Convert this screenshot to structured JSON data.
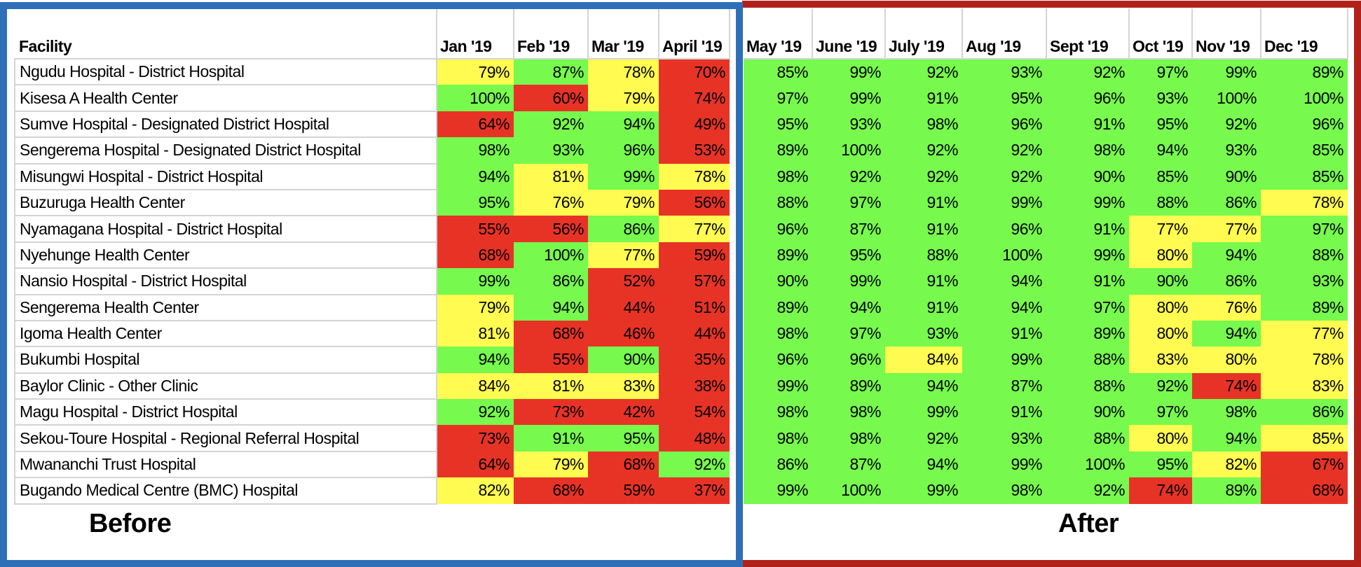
{
  "table": {
    "facility_header": "Facility",
    "before_months": [
      "Jan '19",
      "Feb '19",
      "Mar '19",
      "April '19"
    ],
    "after_months": [
      "May '19",
      "June '19",
      "July '19",
      "Aug '19",
      "Sept '19",
      "Oct '19",
      "Nov '19",
      "Dec '19"
    ],
    "colors": {
      "green": "#77f94d",
      "yellow": "#fffb50",
      "red": "#e73326",
      "before_frame": "#2e6fb8",
      "after_frame": "#b1211a"
    },
    "rows": [
      {
        "facility": "Ngudu Hospital - District Hospital",
        "before": [
          [
            "79%",
            "y"
          ],
          [
            "87%",
            "g"
          ],
          [
            "78%",
            "y"
          ],
          [
            "70%",
            "r"
          ]
        ],
        "after": [
          [
            "85%",
            "g"
          ],
          [
            "99%",
            "g"
          ],
          [
            "92%",
            "g"
          ],
          [
            "93%",
            "g"
          ],
          [
            "92%",
            "g"
          ],
          [
            "97%",
            "g"
          ],
          [
            "99%",
            "g"
          ],
          [
            "89%",
            "g"
          ]
        ]
      },
      {
        "facility": "Kisesa A Health Center",
        "before": [
          [
            "100%",
            "g"
          ],
          [
            "60%",
            "r"
          ],
          [
            "79%",
            "y"
          ],
          [
            "74%",
            "r"
          ]
        ],
        "after": [
          [
            "97%",
            "g"
          ],
          [
            "99%",
            "g"
          ],
          [
            "91%",
            "g"
          ],
          [
            "95%",
            "g"
          ],
          [
            "96%",
            "g"
          ],
          [
            "93%",
            "g"
          ],
          [
            "100%",
            "g"
          ],
          [
            "100%",
            "g"
          ]
        ]
      },
      {
        "facility": "Sumve Hospital - Designated District Hospital",
        "before": [
          [
            "64%",
            "r"
          ],
          [
            "92%",
            "g"
          ],
          [
            "94%",
            "g"
          ],
          [
            "49%",
            "r"
          ]
        ],
        "after": [
          [
            "95%",
            "g"
          ],
          [
            "93%",
            "g"
          ],
          [
            "98%",
            "g"
          ],
          [
            "96%",
            "g"
          ],
          [
            "91%",
            "g"
          ],
          [
            "95%",
            "g"
          ],
          [
            "92%",
            "g"
          ],
          [
            "96%",
            "g"
          ]
        ]
      },
      {
        "facility": "Sengerema Hospital - Designated District Hospital",
        "before": [
          [
            "98%",
            "g"
          ],
          [
            "93%",
            "g"
          ],
          [
            "96%",
            "g"
          ],
          [
            "53%",
            "r"
          ]
        ],
        "after": [
          [
            "89%",
            "g"
          ],
          [
            "100%",
            "g"
          ],
          [
            "92%",
            "g"
          ],
          [
            "92%",
            "g"
          ],
          [
            "98%",
            "g"
          ],
          [
            "94%",
            "g"
          ],
          [
            "93%",
            "g"
          ],
          [
            "85%",
            "g"
          ]
        ]
      },
      {
        "facility": "Misungwi Hospital - District Hospital",
        "before": [
          [
            "94%",
            "g"
          ],
          [
            "81%",
            "y"
          ],
          [
            "99%",
            "g"
          ],
          [
            "78%",
            "y"
          ]
        ],
        "after": [
          [
            "98%",
            "g"
          ],
          [
            "92%",
            "g"
          ],
          [
            "92%",
            "g"
          ],
          [
            "92%",
            "g"
          ],
          [
            "90%",
            "g"
          ],
          [
            "85%",
            "g"
          ],
          [
            "90%",
            "g"
          ],
          [
            "85%",
            "g"
          ]
        ]
      },
      {
        "facility": "Buzuruga Health Center",
        "before": [
          [
            "95%",
            "g"
          ],
          [
            "76%",
            "y"
          ],
          [
            "79%",
            "y"
          ],
          [
            "56%",
            "r"
          ]
        ],
        "after": [
          [
            "88%",
            "g"
          ],
          [
            "97%",
            "g"
          ],
          [
            "91%",
            "g"
          ],
          [
            "99%",
            "g"
          ],
          [
            "99%",
            "g"
          ],
          [
            "88%",
            "g"
          ],
          [
            "86%",
            "g"
          ],
          [
            "78%",
            "y"
          ]
        ]
      },
      {
        "facility": "Nyamagana Hospital - District Hospital",
        "before": [
          [
            "55%",
            "r"
          ],
          [
            "56%",
            "r"
          ],
          [
            "86%",
            "g"
          ],
          [
            "77%",
            "y"
          ]
        ],
        "after": [
          [
            "96%",
            "g"
          ],
          [
            "87%",
            "g"
          ],
          [
            "91%",
            "g"
          ],
          [
            "96%",
            "g"
          ],
          [
            "91%",
            "g"
          ],
          [
            "77%",
            "y"
          ],
          [
            "77%",
            "y"
          ],
          [
            "97%",
            "g"
          ]
        ]
      },
      {
        "facility": "Nyehunge Health Center",
        "before": [
          [
            "68%",
            "r"
          ],
          [
            "100%",
            "g"
          ],
          [
            "77%",
            "y"
          ],
          [
            "59%",
            "r"
          ]
        ],
        "after": [
          [
            "89%",
            "g"
          ],
          [
            "95%",
            "g"
          ],
          [
            "88%",
            "g"
          ],
          [
            "100%",
            "g"
          ],
          [
            "99%",
            "g"
          ],
          [
            "80%",
            "y"
          ],
          [
            "94%",
            "g"
          ],
          [
            "88%",
            "g"
          ]
        ]
      },
      {
        "facility": "Nansio Hospital - District Hospital",
        "before": [
          [
            "99%",
            "g"
          ],
          [
            "86%",
            "g"
          ],
          [
            "52%",
            "r"
          ],
          [
            "57%",
            "r"
          ]
        ],
        "after": [
          [
            "90%",
            "g"
          ],
          [
            "99%",
            "g"
          ],
          [
            "91%",
            "g"
          ],
          [
            "94%",
            "g"
          ],
          [
            "91%",
            "g"
          ],
          [
            "90%",
            "g"
          ],
          [
            "86%",
            "g"
          ],
          [
            "93%",
            "g"
          ]
        ]
      },
      {
        "facility": "Sengerema Health Center",
        "before": [
          [
            "79%",
            "y"
          ],
          [
            "94%",
            "g"
          ],
          [
            "44%",
            "r"
          ],
          [
            "51%",
            "r"
          ]
        ],
        "after": [
          [
            "89%",
            "g"
          ],
          [
            "94%",
            "g"
          ],
          [
            "91%",
            "g"
          ],
          [
            "94%",
            "g"
          ],
          [
            "97%",
            "g"
          ],
          [
            "80%",
            "y"
          ],
          [
            "76%",
            "y"
          ],
          [
            "89%",
            "g"
          ]
        ]
      },
      {
        "facility": "Igoma Health Center",
        "before": [
          [
            "81%",
            "y"
          ],
          [
            "68%",
            "r"
          ],
          [
            "46%",
            "r"
          ],
          [
            "44%",
            "r"
          ]
        ],
        "after": [
          [
            "98%",
            "g"
          ],
          [
            "97%",
            "g"
          ],
          [
            "93%",
            "g"
          ],
          [
            "91%",
            "g"
          ],
          [
            "89%",
            "g"
          ],
          [
            "80%",
            "y"
          ],
          [
            "94%",
            "g"
          ],
          [
            "77%",
            "y"
          ]
        ]
      },
      {
        "facility": "Bukumbi Hospital",
        "before": [
          [
            "94%",
            "g"
          ],
          [
            "55%",
            "r"
          ],
          [
            "90%",
            "g"
          ],
          [
            "35%",
            "r"
          ]
        ],
        "after": [
          [
            "96%",
            "g"
          ],
          [
            "96%",
            "g"
          ],
          [
            "84%",
            "y"
          ],
          [
            "99%",
            "g"
          ],
          [
            "88%",
            "g"
          ],
          [
            "83%",
            "y"
          ],
          [
            "80%",
            "y"
          ],
          [
            "78%",
            "y"
          ]
        ]
      },
      {
        "facility": "Baylor Clinic - Other Clinic",
        "before": [
          [
            "84%",
            "y"
          ],
          [
            "81%",
            "y"
          ],
          [
            "83%",
            "y"
          ],
          [
            "38%",
            "r"
          ]
        ],
        "after": [
          [
            "99%",
            "g"
          ],
          [
            "89%",
            "g"
          ],
          [
            "94%",
            "g"
          ],
          [
            "87%",
            "g"
          ],
          [
            "88%",
            "g"
          ],
          [
            "92%",
            "g"
          ],
          [
            "74%",
            "r"
          ],
          [
            "83%",
            "y"
          ]
        ]
      },
      {
        "facility": "Magu Hospital - District Hospital",
        "before": [
          [
            "92%",
            "g"
          ],
          [
            "73%",
            "r"
          ],
          [
            "42%",
            "r"
          ],
          [
            "54%",
            "r"
          ]
        ],
        "after": [
          [
            "98%",
            "g"
          ],
          [
            "98%",
            "g"
          ],
          [
            "99%",
            "g"
          ],
          [
            "91%",
            "g"
          ],
          [
            "90%",
            "g"
          ],
          [
            "97%",
            "g"
          ],
          [
            "98%",
            "g"
          ],
          [
            "86%",
            "g"
          ]
        ]
      },
      {
        "facility": "Sekou-Toure Hospital - Regional Referral Hospital",
        "before": [
          [
            "73%",
            "r"
          ],
          [
            "91%",
            "g"
          ],
          [
            "95%",
            "g"
          ],
          [
            "48%",
            "r"
          ]
        ],
        "after": [
          [
            "98%",
            "g"
          ],
          [
            "98%",
            "g"
          ],
          [
            "92%",
            "g"
          ],
          [
            "93%",
            "g"
          ],
          [
            "88%",
            "g"
          ],
          [
            "80%",
            "y"
          ],
          [
            "94%",
            "g"
          ],
          [
            "85%",
            "y"
          ]
        ]
      },
      {
        "facility": "Mwananchi Trust Hospital",
        "before": [
          [
            "64%",
            "r"
          ],
          [
            "79%",
            "y"
          ],
          [
            "68%",
            "r"
          ],
          [
            "92%",
            "g"
          ]
        ],
        "after": [
          [
            "86%",
            "g"
          ],
          [
            "87%",
            "g"
          ],
          [
            "94%",
            "g"
          ],
          [
            "99%",
            "g"
          ],
          [
            "100%",
            "g"
          ],
          [
            "95%",
            "g"
          ],
          [
            "82%",
            "y"
          ],
          [
            "67%",
            "r"
          ]
        ]
      },
      {
        "facility": "Bugando Medical Centre (BMC) Hospital",
        "before": [
          [
            "82%",
            "y"
          ],
          [
            "68%",
            "r"
          ],
          [
            "59%",
            "r"
          ],
          [
            "37%",
            "r"
          ]
        ],
        "after": [
          [
            "99%",
            "g"
          ],
          [
            "100%",
            "g"
          ],
          [
            "99%",
            "g"
          ],
          [
            "98%",
            "g"
          ],
          [
            "92%",
            "g"
          ],
          [
            "74%",
            "r"
          ],
          [
            "89%",
            "g"
          ],
          [
            "68%",
            "r"
          ]
        ]
      }
    ]
  },
  "labels": {
    "before": "Before",
    "after": "After"
  }
}
